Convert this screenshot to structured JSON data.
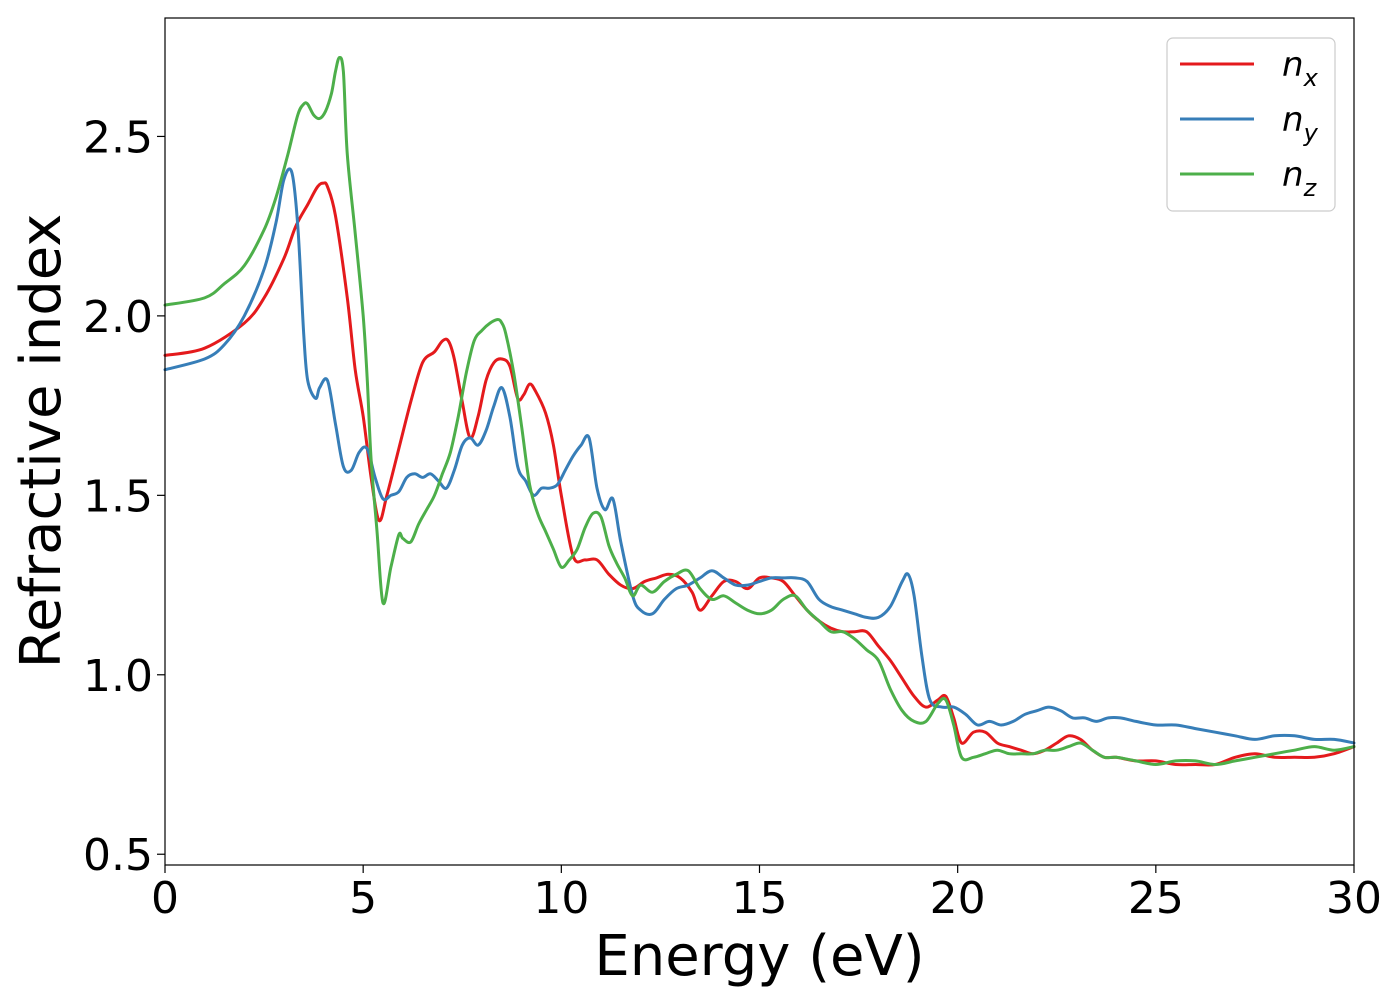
{
  "chart_data": {
    "type": "line",
    "xlabel": "Energy (eV)",
    "ylabel": "Refractive index",
    "xlim": [
      0,
      30
    ],
    "ylim": [
      0.47,
      2.83
    ],
    "xticks": [
      0,
      5,
      10,
      15,
      20,
      25,
      30
    ],
    "xtick_labels": [
      "0",
      "5",
      "10",
      "15",
      "20",
      "25",
      "30"
    ],
    "yticks": [
      0.5,
      1.0,
      1.5,
      2.0,
      2.5
    ],
    "ytick_labels": [
      "0.5",
      "1.0",
      "1.5",
      "2.0",
      "2.5"
    ],
    "grid": false,
    "legend_position": "top-right",
    "series": [
      {
        "name": "n_x",
        "legend_base": "n",
        "legend_sub": "x",
        "color": "#e41a1c",
        "x": [
          0,
          1,
          2,
          2.5,
          3,
          3.3,
          3.6,
          3.85,
          4.0,
          4.1,
          4.3,
          4.6,
          4.8,
          5.0,
          5.2,
          5.4,
          5.6,
          5.9,
          6.2,
          6.5,
          6.8,
          7.0,
          7.15,
          7.3,
          7.5,
          7.7,
          7.9,
          8.1,
          8.3,
          8.5,
          8.7,
          8.9,
          9.05,
          9.2,
          9.35,
          9.6,
          9.8,
          10.0,
          10.3,
          10.6,
          10.9,
          11.2,
          11.5,
          11.8,
          12.1,
          12.4,
          12.7,
          13.0,
          13.3,
          13.5,
          13.8,
          14.1,
          14.4,
          14.7,
          15.0,
          15.3,
          15.6,
          15.9,
          16.2,
          16.5,
          16.8,
          17.1,
          17.4,
          17.7,
          18.0,
          18.3,
          18.6,
          18.9,
          19.2,
          19.5,
          19.7,
          19.9,
          20.1,
          20.4,
          20.7,
          21.0,
          21.3,
          21.6,
          21.9,
          22.2,
          22.5,
          22.8,
          23.1,
          23.4,
          23.7,
          24.0,
          24.5,
          25.0,
          25.5,
          26.0,
          26.5,
          27.0,
          27.5,
          28.0,
          28.5,
          29.0,
          29.5,
          30.0
        ],
        "y": [
          1.89,
          1.91,
          1.98,
          2.05,
          2.16,
          2.25,
          2.31,
          2.36,
          2.37,
          2.36,
          2.28,
          2.05,
          1.85,
          1.72,
          1.55,
          1.43,
          1.5,
          1.63,
          1.76,
          1.87,
          1.9,
          1.93,
          1.93,
          1.88,
          1.76,
          1.66,
          1.72,
          1.82,
          1.87,
          1.88,
          1.86,
          1.77,
          1.78,
          1.81,
          1.79,
          1.73,
          1.64,
          1.5,
          1.33,
          1.32,
          1.32,
          1.28,
          1.25,
          1.24,
          1.26,
          1.27,
          1.28,
          1.27,
          1.23,
          1.18,
          1.22,
          1.26,
          1.26,
          1.24,
          1.27,
          1.27,
          1.26,
          1.22,
          1.18,
          1.15,
          1.13,
          1.12,
          1.12,
          1.12,
          1.08,
          1.04,
          0.99,
          0.94,
          0.91,
          0.93,
          0.94,
          0.88,
          0.81,
          0.84,
          0.84,
          0.81,
          0.8,
          0.79,
          0.78,
          0.79,
          0.81,
          0.83,
          0.82,
          0.79,
          0.77,
          0.77,
          0.76,
          0.76,
          0.75,
          0.75,
          0.75,
          0.77,
          0.78,
          0.77,
          0.77,
          0.77,
          0.78,
          0.8
        ]
      },
      {
        "name": "n_y",
        "legend_base": "n",
        "legend_sub": "y",
        "color": "#377eb8",
        "x": [
          0,
          1,
          1.5,
          2,
          2.5,
          2.8,
          3.0,
          3.2,
          3.35,
          3.5,
          3.6,
          3.8,
          3.9,
          4.1,
          4.3,
          4.5,
          4.7,
          4.9,
          5.1,
          5.3,
          5.5,
          5.7,
          5.9,
          6.1,
          6.3,
          6.5,
          6.7,
          6.9,
          7.1,
          7.3,
          7.5,
          7.7,
          7.9,
          8.1,
          8.3,
          8.5,
          8.7,
          8.9,
          9.1,
          9.3,
          9.5,
          9.7,
          9.9,
          10.1,
          10.3,
          10.5,
          10.7,
          10.9,
          11.1,
          11.3,
          11.5,
          11.8,
          12.0,
          12.3,
          12.6,
          12.9,
          13.2,
          13.5,
          13.8,
          14.1,
          14.4,
          14.7,
          15.0,
          15.3,
          15.6,
          15.9,
          16.2,
          16.5,
          16.8,
          17.1,
          17.4,
          17.7,
          18.0,
          18.3,
          18.6,
          18.75,
          18.9,
          19.1,
          19.3,
          19.6,
          19.9,
          20.2,
          20.5,
          20.8,
          21.1,
          21.4,
          21.7,
          22.0,
          22.3,
          22.6,
          22.9,
          23.2,
          23.5,
          23.8,
          24.1,
          24.5,
          25.0,
          25.5,
          26.0,
          26.5,
          27.0,
          27.5,
          28.0,
          28.5,
          29.0,
          29.5,
          30.0
        ],
        "y": [
          1.85,
          1.88,
          1.92,
          2.0,
          2.13,
          2.26,
          2.38,
          2.4,
          2.25,
          1.95,
          1.82,
          1.77,
          1.8,
          1.82,
          1.7,
          1.58,
          1.57,
          1.62,
          1.63,
          1.55,
          1.49,
          1.5,
          1.51,
          1.55,
          1.56,
          1.55,
          1.56,
          1.54,
          1.52,
          1.57,
          1.64,
          1.66,
          1.64,
          1.68,
          1.75,
          1.8,
          1.72,
          1.58,
          1.54,
          1.5,
          1.52,
          1.52,
          1.53,
          1.57,
          1.61,
          1.64,
          1.66,
          1.52,
          1.46,
          1.49,
          1.37,
          1.22,
          1.18,
          1.17,
          1.21,
          1.24,
          1.25,
          1.27,
          1.29,
          1.27,
          1.25,
          1.25,
          1.26,
          1.27,
          1.27,
          1.27,
          1.26,
          1.21,
          1.19,
          1.18,
          1.17,
          1.16,
          1.16,
          1.19,
          1.26,
          1.28,
          1.22,
          1.05,
          0.93,
          0.91,
          0.91,
          0.89,
          0.86,
          0.87,
          0.86,
          0.87,
          0.89,
          0.9,
          0.91,
          0.9,
          0.88,
          0.88,
          0.87,
          0.88,
          0.88,
          0.87,
          0.86,
          0.86,
          0.85,
          0.84,
          0.83,
          0.82,
          0.83,
          0.83,
          0.82,
          0.82,
          0.81
        ]
      },
      {
        "name": "n_z",
        "legend_base": "n",
        "legend_sub": "z",
        "color": "#4daf4a",
        "x": [
          0,
          1,
          1.5,
          2,
          2.5,
          2.8,
          3.1,
          3.35,
          3.5,
          3.6,
          3.75,
          3.9,
          4.05,
          4.2,
          4.3,
          4.4,
          4.5,
          4.6,
          4.8,
          5.0,
          5.1,
          5.2,
          5.35,
          5.5,
          5.7,
          5.9,
          6.0,
          6.2,
          6.4,
          6.6,
          6.8,
          7.0,
          7.2,
          7.4,
          7.6,
          7.8,
          8.0,
          8.2,
          8.4,
          8.5,
          8.6,
          8.8,
          9.0,
          9.2,
          9.4,
          9.6,
          9.8,
          10.0,
          10.2,
          10.4,
          10.6,
          10.8,
          11.0,
          11.2,
          11.4,
          11.6,
          11.8,
          12.0,
          12.3,
          12.6,
          12.9,
          13.2,
          13.5,
          13.8,
          14.1,
          14.4,
          14.7,
          15.0,
          15.3,
          15.6,
          15.9,
          16.2,
          16.5,
          16.8,
          17.1,
          17.4,
          17.7,
          18.0,
          18.3,
          18.6,
          18.9,
          19.2,
          19.5,
          19.7,
          19.9,
          20.1,
          20.4,
          20.7,
          21.0,
          21.3,
          21.6,
          21.9,
          22.2,
          22.5,
          22.8,
          23.1,
          23.4,
          23.7,
          24.0,
          24.5,
          25.0,
          25.5,
          26.0,
          26.5,
          27.0,
          27.5,
          28.0,
          28.5,
          29.0,
          29.5,
          30.0
        ],
        "y": [
          2.03,
          2.05,
          2.09,
          2.14,
          2.24,
          2.33,
          2.45,
          2.56,
          2.59,
          2.59,
          2.56,
          2.55,
          2.57,
          2.62,
          2.68,
          2.72,
          2.68,
          2.45,
          2.23,
          2.0,
          1.83,
          1.6,
          1.4,
          1.2,
          1.3,
          1.39,
          1.38,
          1.37,
          1.42,
          1.46,
          1.5,
          1.56,
          1.62,
          1.72,
          1.84,
          1.93,
          1.96,
          1.98,
          1.99,
          1.98,
          1.95,
          1.84,
          1.69,
          1.53,
          1.45,
          1.4,
          1.35,
          1.3,
          1.32,
          1.35,
          1.41,
          1.45,
          1.44,
          1.36,
          1.31,
          1.27,
          1.22,
          1.25,
          1.23,
          1.26,
          1.28,
          1.29,
          1.24,
          1.21,
          1.22,
          1.2,
          1.18,
          1.17,
          1.18,
          1.21,
          1.22,
          1.18,
          1.15,
          1.12,
          1.12,
          1.1,
          1.07,
          1.04,
          0.96,
          0.9,
          0.87,
          0.87,
          0.92,
          0.93,
          0.86,
          0.77,
          0.77,
          0.78,
          0.79,
          0.78,
          0.78,
          0.78,
          0.79,
          0.79,
          0.8,
          0.81,
          0.79,
          0.77,
          0.77,
          0.76,
          0.75,
          0.76,
          0.76,
          0.75,
          0.76,
          0.77,
          0.78,
          0.79,
          0.8,
          0.79,
          0.8
        ]
      }
    ]
  }
}
